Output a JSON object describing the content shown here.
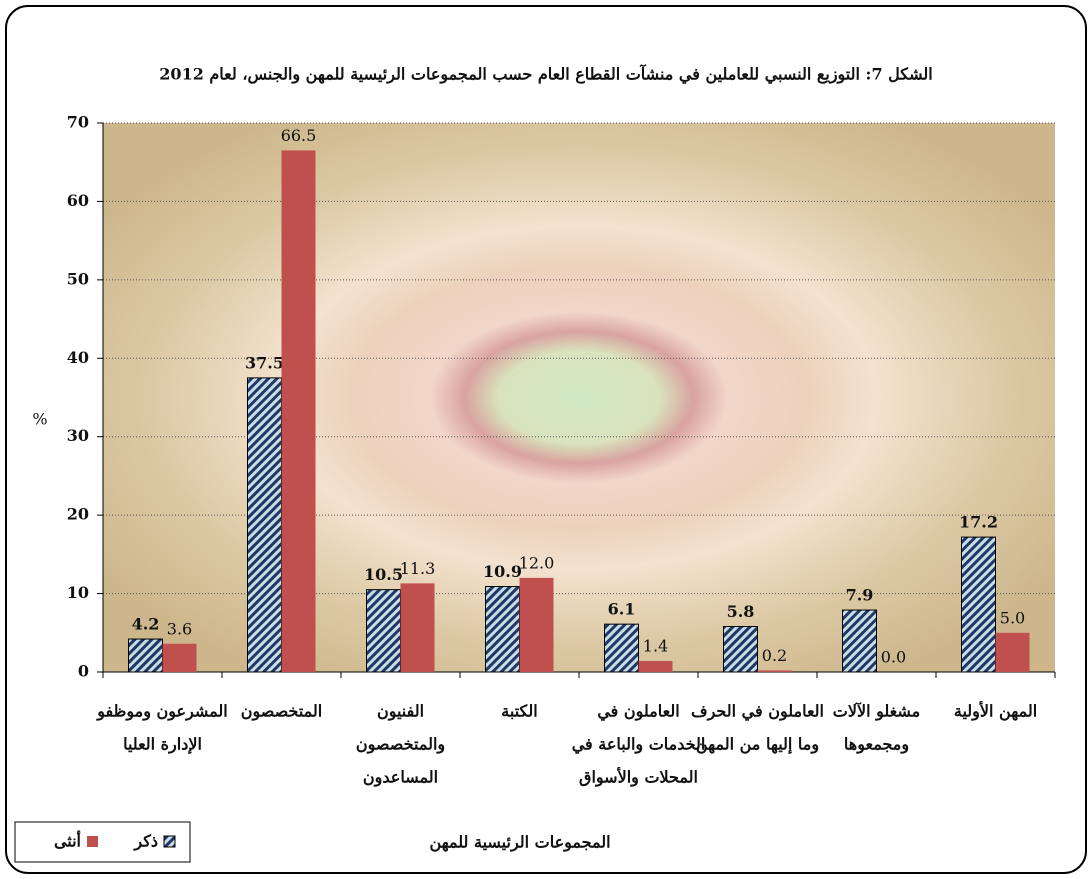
{
  "chart_data": {
    "type": "bar",
    "title": "الشكل 7: التوزيع النسبي للعاملين في منشآت القطاع العام حسب المجموعات الرئيسية للمهن والجنس، لعام 2012",
    "y_label": "%",
    "x_label": "المجموعات الرئيسية للمهن",
    "categories": [
      [
        "المشرعون وموظفو",
        "الإدارة العليا"
      ],
      [
        "المتخصصون"
      ],
      [
        "الفنيون",
        "والمتخصصون",
        "المساعدون"
      ],
      [
        "الكتبة"
      ],
      [
        "العاملون في",
        "الخدمات والباعة في",
        "المحلات والأسواق"
      ],
      [
        "العاملون في الحرف",
        "وما إليها من المهن"
      ],
      [
        "مشغلو الآلات",
        "ومجمعوها"
      ],
      [
        "المهن الأولية"
      ]
    ],
    "series": [
      {
        "name": "ذكر",
        "color": "#1f3864",
        "values": [
          4.2,
          37.5,
          10.5,
          10.9,
          6.1,
          5.8,
          7.9,
          17.2
        ]
      },
      {
        "name": "أنثى",
        "color": "#c0504d",
        "values": [
          3.6,
          66.5,
          11.3,
          12.0,
          1.4,
          0.2,
          0.0,
          5.0
        ],
        "value_labels": [
          "3.6",
          "66.5",
          "11.3",
          "12.0",
          "1.4",
          "0.2",
          "0.0",
          "5.0"
        ]
      }
    ],
    "ylim": [
      0,
      70
    ],
    "yticks": [
      0,
      10,
      20,
      30,
      40,
      50,
      60,
      70
    ],
    "grid": true
  }
}
